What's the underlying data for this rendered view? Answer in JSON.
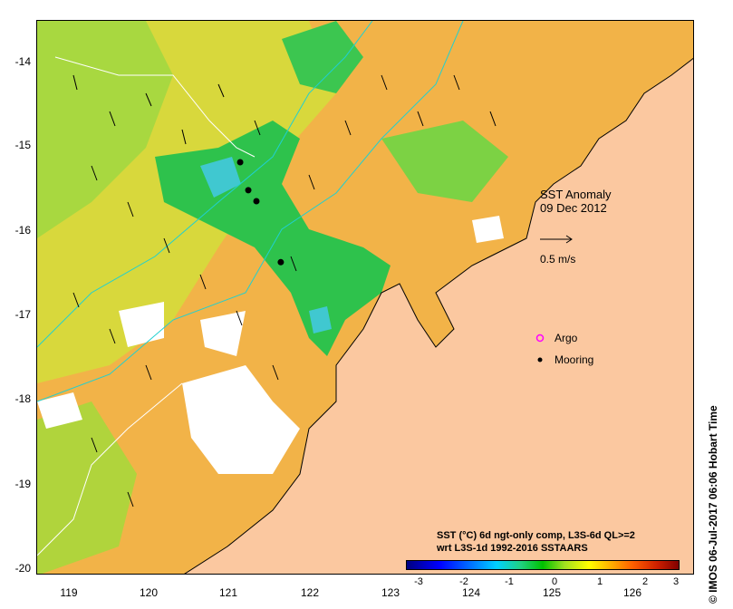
{
  "map": {
    "title": "SST Anomaly",
    "date": "09 Dec 2012",
    "scale_label": "0.5 m/s",
    "legend": {
      "argo": "Argo",
      "mooring": "Mooring"
    },
    "credit": "© IMOS 06-Jul-2017 06:06 Hobart Time",
    "description_line1": "SST (°C) 6d ngt-only comp, L3S-6d QL>=2",
    "description_line2": "wrt L3S-1d 1992-2016 SSTAARS",
    "colors": {
      "land": "#fbc8a0",
      "warm": "#f5b24a",
      "cool": "#22c04a",
      "missing": "#ffffff",
      "accent": "#ff00ff"
    },
    "x_ticks": [
      "119",
      "120",
      "121",
      "122",
      "123",
      "124",
      "125",
      "126"
    ],
    "y_ticks": [
      "-14",
      "-15",
      "-16",
      "-17",
      "-18",
      "-19",
      "-20"
    ],
    "colorbar": {
      "ticks": [
        "-3",
        "-2",
        "-1",
        "0",
        "1",
        "2",
        "3"
      ],
      "range": [
        -3,
        3
      ]
    },
    "moorings": [
      {
        "lon": 121.1,
        "lat": -15.22
      },
      {
        "lon": 121.2,
        "lat": -15.55
      },
      {
        "lon": 121.3,
        "lat": -15.68
      },
      {
        "lon": 121.6,
        "lat": -16.4
      }
    ],
    "extent": {
      "lon": [
        118.6,
        126.7
      ],
      "lat": [
        -20.1,
        -13.55
      ]
    }
  }
}
